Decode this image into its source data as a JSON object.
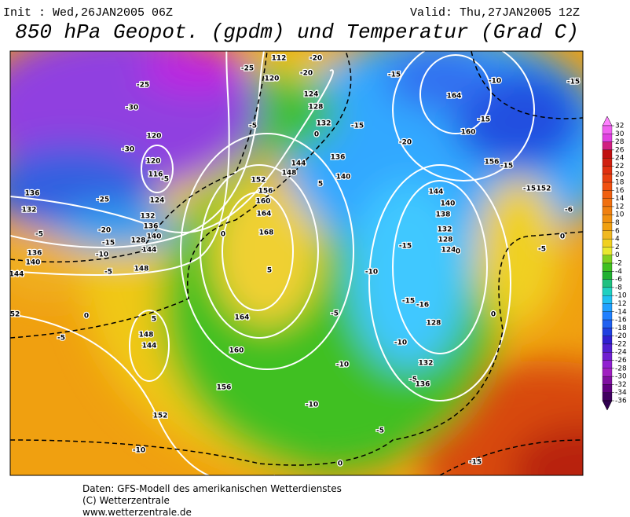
{
  "header": {
    "init": "Init : Wed,26JAN2005 06Z",
    "valid": "Valid: Thu,27JAN2005 12Z",
    "title": "850 hPa Geopot. (gpdm) und Temperatur (Grad C)"
  },
  "map": {
    "contour_labels": [
      "-25",
      "112",
      "-20",
      "-20",
      "120",
      "-25",
      "-30",
      "124",
      "128",
      "132",
      "-15",
      "-15",
      "-10",
      "164",
      "-15",
      "-15",
      "160",
      "-20",
      "156",
      "-15",
      "-15",
      "152",
      "-5",
      "0",
      "-30",
      "120",
      "120",
      "116",
      "-5",
      "136",
      "144",
      "148",
      "140",
      "152",
      "156",
      "160",
      "164",
      "5",
      "-25",
      "136",
      "124",
      "132",
      "136",
      "140",
      "-20",
      "-15",
      "-10",
      "144",
      "148",
      "-5",
      "132",
      "-5",
      "128",
      "168",
      "0",
      "5",
      "136",
      "140",
      "144",
      "52",
      "-5",
      "0",
      "5",
      "148",
      "144",
      "164",
      "160",
      "156",
      "152",
      "-10",
      "0",
      "-15",
      "-5",
      "-10",
      "-10",
      "-10",
      "-10",
      "-5",
      "-5",
      "132",
      "136",
      "128",
      "-15",
      "-16",
      "-15",
      "132",
      "128",
      "124",
      "0",
      "140",
      "138",
      "144",
      "-5",
      "0",
      "-6",
      "0"
    ]
  },
  "colorbar": {
    "levels": [
      32,
      30,
      28,
      26,
      24,
      22,
      20,
      18,
      16,
      14,
      12,
      10,
      8,
      6,
      4,
      2,
      0,
      -2,
      -4,
      -6,
      -8,
      -10,
      -12,
      -14,
      -16,
      -18,
      -20,
      -22,
      -24,
      -26,
      -28,
      -30,
      -32,
      -34,
      -36
    ],
    "colors": [
      "#ff80ff",
      "#f060f0",
      "#e040e0",
      "#d02080",
      "#c01010",
      "#d02010",
      "#e03010",
      "#e84010",
      "#f05010",
      "#f06010",
      "#f07010",
      "#f08010",
      "#f09010",
      "#f0a010",
      "#f0b820",
      "#f0d020",
      "#e8e830",
      "#80d020",
      "#40c020",
      "#20b030",
      "#20c080",
      "#20d0c0",
      "#20c0f0",
      "#20a0ff",
      "#2080ff",
      "#2060f0",
      "#2040e0",
      "#3020d0",
      "#5020d0",
      "#7020d0",
      "#9020d0",
      "#a020c0",
      "#8010a0",
      "#600080",
      "#400060",
      "#300050"
    ]
  },
  "footer": {
    "line1": "Daten: GFS-Modell des amerikanischen Wetterdienstes",
    "line2": "(C) Wetterzentrale",
    "line3": "www.wetterzentrale.de"
  }
}
